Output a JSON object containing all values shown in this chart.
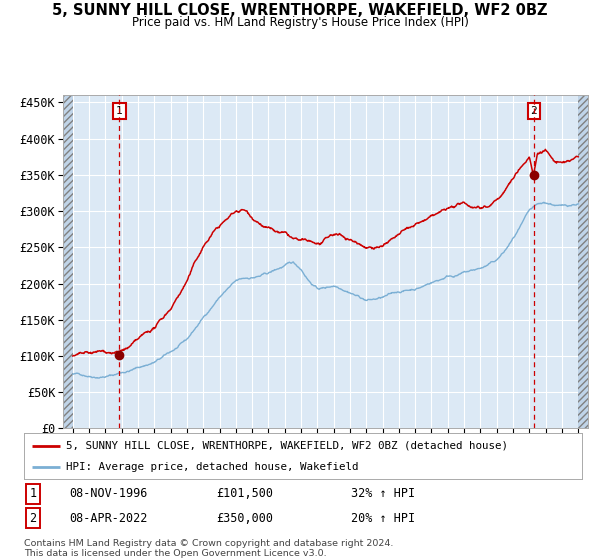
{
  "title": "5, SUNNY HILL CLOSE, WRENTHORPE, WAKEFIELD, WF2 0BZ",
  "subtitle": "Price paid vs. HM Land Registry's House Price Index (HPI)",
  "ylim": [
    0,
    460000
  ],
  "yticks": [
    0,
    50000,
    100000,
    150000,
    200000,
    250000,
    300000,
    350000,
    400000,
    450000
  ],
  "ytick_labels": [
    "£0",
    "£50K",
    "£100K",
    "£150K",
    "£200K",
    "£250K",
    "£300K",
    "£350K",
    "£400K",
    "£450K"
  ],
  "plot_bg_color": "#dce9f5",
  "grid_color": "#ffffff",
  "red_line_color": "#cc0000",
  "blue_line_color": "#7bafd4",
  "marker_color": "#8b0000",
  "vline_color": "#cc0000",
  "sale1_date": 1996.86,
  "sale1_price": 101500,
  "sale2_date": 2022.27,
  "sale2_price": 350000,
  "legend_entries": [
    "5, SUNNY HILL CLOSE, WRENTHORPE, WAKEFIELD, WF2 0BZ (detached house)",
    "HPI: Average price, detached house, Wakefield"
  ],
  "annotation1": [
    "1",
    "08-NOV-1996",
    "£101,500",
    "32% ↑ HPI"
  ],
  "annotation2": [
    "2",
    "08-APR-2022",
    "£350,000",
    "20% ↑ HPI"
  ],
  "footer": "Contains HM Land Registry data © Crown copyright and database right 2024.\nThis data is licensed under the Open Government Licence v3.0.",
  "blue_data": [
    [
      1994.0,
      75000
    ],
    [
      1994.5,
      74500
    ],
    [
      1995.0,
      74000
    ],
    [
      1995.5,
      74500
    ],
    [
      1996.0,
      76000
    ],
    [
      1996.5,
      78000
    ],
    [
      1997.0,
      82000
    ],
    [
      1997.5,
      85000
    ],
    [
      1998.0,
      89000
    ],
    [
      1998.5,
      93000
    ],
    [
      1999.0,
      97000
    ],
    [
      1999.5,
      103000
    ],
    [
      2000.0,
      110000
    ],
    [
      2000.5,
      117000
    ],
    [
      2001.0,
      125000
    ],
    [
      2001.5,
      140000
    ],
    [
      2002.0,
      155000
    ],
    [
      2002.5,
      170000
    ],
    [
      2003.0,
      185000
    ],
    [
      2003.5,
      196000
    ],
    [
      2004.0,
      205000
    ],
    [
      2004.5,
      208000
    ],
    [
      2005.0,
      210000
    ],
    [
      2005.5,
      212000
    ],
    [
      2006.0,
      215000
    ],
    [
      2006.5,
      220000
    ],
    [
      2007.0,
      225000
    ],
    [
      2007.5,
      228000
    ],
    [
      2008.0,
      220000
    ],
    [
      2008.5,
      205000
    ],
    [
      2009.0,
      195000
    ],
    [
      2009.5,
      196000
    ],
    [
      2010.0,
      200000
    ],
    [
      2010.5,
      198000
    ],
    [
      2011.0,
      195000
    ],
    [
      2011.5,
      190000
    ],
    [
      2012.0,
      185000
    ],
    [
      2012.5,
      186000
    ],
    [
      2013.0,
      188000
    ],
    [
      2013.5,
      191000
    ],
    [
      2014.0,
      195000
    ],
    [
      2014.5,
      197000
    ],
    [
      2015.0,
      200000
    ],
    [
      2015.5,
      204000
    ],
    [
      2016.0,
      210000
    ],
    [
      2016.5,
      214000
    ],
    [
      2017.0,
      220000
    ],
    [
      2017.5,
      222000
    ],
    [
      2018.0,
      225000
    ],
    [
      2018.5,
      227000
    ],
    [
      2019.0,
      230000
    ],
    [
      2019.5,
      234000
    ],
    [
      2020.0,
      240000
    ],
    [
      2020.5,
      252000
    ],
    [
      2021.0,
      268000
    ],
    [
      2021.5,
      285000
    ],
    [
      2022.0,
      302000
    ],
    [
      2022.5,
      308000
    ],
    [
      2023.0,
      310000
    ],
    [
      2023.5,
      308000
    ],
    [
      2024.0,
      305000
    ],
    [
      2024.5,
      307000
    ],
    [
      2025.0,
      310000
    ]
  ],
  "red_data": [
    [
      1994.0,
      100000
    ],
    [
      1994.5,
      100500
    ],
    [
      1995.0,
      99500
    ],
    [
      1995.5,
      100000
    ],
    [
      1996.0,
      100500
    ],
    [
      1996.5,
      101000
    ],
    [
      1996.86,
      101500
    ],
    [
      1997.0,
      103000
    ],
    [
      1997.5,
      108000
    ],
    [
      1998.0,
      115000
    ],
    [
      1998.5,
      122000
    ],
    [
      1999.0,
      130000
    ],
    [
      1999.5,
      142000
    ],
    [
      2000.0,
      158000
    ],
    [
      2000.5,
      178000
    ],
    [
      2001.0,
      198000
    ],
    [
      2001.5,
      222000
    ],
    [
      2002.0,
      245000
    ],
    [
      2002.5,
      262000
    ],
    [
      2003.0,
      275000
    ],
    [
      2003.5,
      285000
    ],
    [
      2004.0,
      295000
    ],
    [
      2004.5,
      298000
    ],
    [
      2005.0,
      290000
    ],
    [
      2005.5,
      285000
    ],
    [
      2006.0,
      278000
    ],
    [
      2006.5,
      272000
    ],
    [
      2007.0,
      268000
    ],
    [
      2007.5,
      260000
    ],
    [
      2008.0,
      255000
    ],
    [
      2008.5,
      252000
    ],
    [
      2009.0,
      248000
    ],
    [
      2009.5,
      252000
    ],
    [
      2010.0,
      258000
    ],
    [
      2010.5,
      255000
    ],
    [
      2011.0,
      252000
    ],
    [
      2011.5,
      248000
    ],
    [
      2012.0,
      245000
    ],
    [
      2012.5,
      248000
    ],
    [
      2013.0,
      252000
    ],
    [
      2013.5,
      258000
    ],
    [
      2014.0,
      265000
    ],
    [
      2014.5,
      270000
    ],
    [
      2015.0,
      275000
    ],
    [
      2015.5,
      280000
    ],
    [
      2016.0,
      285000
    ],
    [
      2016.5,
      290000
    ],
    [
      2017.0,
      295000
    ],
    [
      2017.5,
      298000
    ],
    [
      2018.0,
      300000
    ],
    [
      2018.5,
      298000
    ],
    [
      2019.0,
      300000
    ],
    [
      2019.5,
      305000
    ],
    [
      2020.0,
      315000
    ],
    [
      2020.5,
      328000
    ],
    [
      2021.0,
      345000
    ],
    [
      2021.5,
      362000
    ],
    [
      2022.0,
      375000
    ],
    [
      2022.27,
      350000
    ],
    [
      2022.5,
      382000
    ],
    [
      2023.0,
      388000
    ],
    [
      2023.5,
      372000
    ],
    [
      2024.0,
      368000
    ],
    [
      2024.5,
      372000
    ],
    [
      2025.0,
      375000
    ]
  ]
}
